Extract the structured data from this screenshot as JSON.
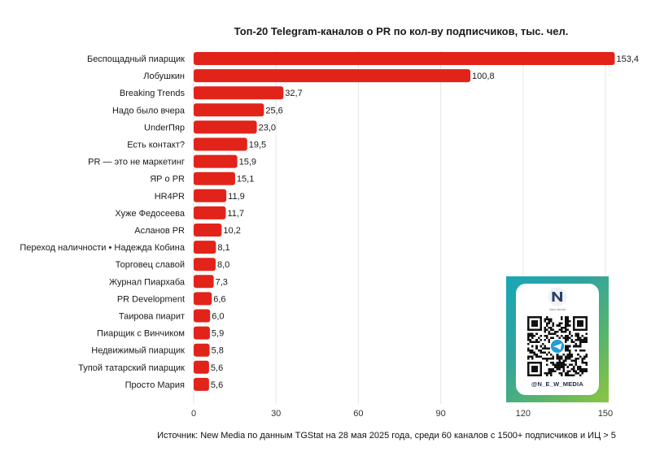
{
  "chart_data": {
    "type": "bar",
    "orientation": "horizontal",
    "title": "Топ-20 Telegram-каналов о PR по кол-ву подписчиков, тыс. чел.",
    "categories": [
      "Беспощадный пиарщик",
      "Лобушкин",
      "Breaking Trends",
      "Надо было вчера",
      "UnderПяр",
      "Есть контакт?",
      "PR — это не маркетинг",
      "ЯР о PR",
      "HR4PR",
      "Хуже Федосеева",
      "Асланов PR",
      "Переход наличности • Надежда Кобина",
      "Торговец славой",
      "Журнал Пиархаба",
      "PR Development",
      "Таирова пиарит",
      "Пиарщик с Винчиком",
      "Недвижимый пиарщик",
      "Тупой татарский пиарщик",
      "Просто Мария"
    ],
    "values": [
      153.4,
      100.8,
      32.7,
      25.6,
      23.0,
      19.5,
      15.9,
      15.1,
      11.9,
      11.7,
      10.2,
      8.1,
      8.0,
      7.3,
      6.6,
      6.0,
      5.9,
      5.8,
      5.6,
      5.6
    ],
    "value_labels": [
      "153,4",
      "100,8",
      "32,7",
      "25,6",
      "23,0",
      "19,5",
      "15,9",
      "15,1",
      "11,9",
      "11,7",
      "10,2",
      "8,1",
      "8,0",
      "7,3",
      "6,6",
      "6,0",
      "5,9",
      "5,8",
      "5,6",
      "5,6"
    ],
    "xlim": [
      0,
      150
    ],
    "xticks": [
      0,
      30,
      60,
      90,
      120,
      150
    ],
    "xtick_labels": [
      "0",
      "30",
      "60",
      "90",
      "120",
      "150"
    ],
    "grid": "vertical",
    "legend": "none"
  },
  "source_note": "Источник: New Media по данным TGStat на 28 мая 2025 года, среди 60 каналов с 1500+ подписчиков и ИЦ > 5",
  "qr_card": {
    "logo_caption": "New Media",
    "handle": "@N_E_W_MEDIA",
    "icon": "telegram-icon"
  },
  "colors": {
    "bar": "#e2231a",
    "grid": "#e6e6e6",
    "card_gradient": [
      "#18a7b5",
      "#8cc63f"
    ],
    "logo": "#2f3e63"
  }
}
